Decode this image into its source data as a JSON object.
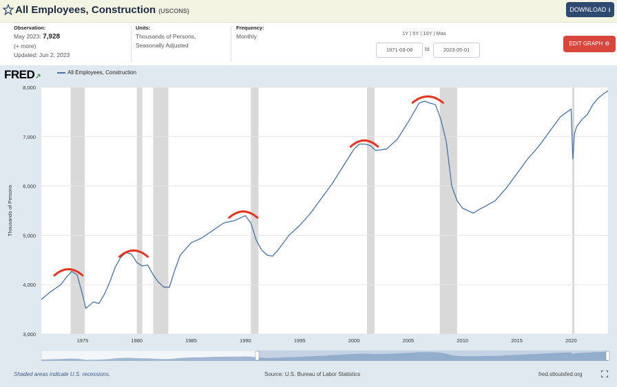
{
  "header": {
    "title": "All Employees, Construction",
    "series_id": "(USCONS)",
    "download_label": "DOWNLOAD"
  },
  "observation": {
    "label": "Observation:",
    "period": "May 2023:",
    "value": "7,928",
    "more": "(+ more)",
    "updated": "Updated: Jun 2, 2023"
  },
  "units": {
    "label": "Units:",
    "line1": "Thousands of Persons,",
    "line2": "Seasonally Adjusted"
  },
  "frequency": {
    "label": "Frequency:",
    "value": "Monthly"
  },
  "ranges": "1Y | 5Y | 10Y | Max",
  "dates": {
    "start": "1971-03-08",
    "to": "to",
    "end": "2023-05-01"
  },
  "edit_label": "EDIT GRAPH",
  "logo": "FRED",
  "legend": "All Employees, Construction",
  "footer": {
    "recession_note": "Shaded areas indicate U.S. recessions.",
    "source": "Source: U.S. Bureau of Labor Statistics",
    "site": "fred.stlouisfed.org"
  },
  "colors": {
    "line": "#4572a7",
    "recession": "#d9d9d9",
    "annotation": "#e8331c",
    "download": "#2e4a70",
    "edit": "#d9463b"
  },
  "chart_data": {
    "type": "line",
    "ylabel": "Thousands of Persons",
    "ylim": [
      3000,
      8000
    ],
    "xlim": [
      1971.2,
      2023.4
    ],
    "yticks": [
      3000,
      4000,
      5000,
      6000,
      7000,
      8000
    ],
    "ytick_labels": [
      "3,000",
      "4,000",
      "5,000",
      "6,000",
      "7,000",
      "8,000"
    ],
    "xticks": [
      1975,
      1980,
      1985,
      1990,
      1995,
      2000,
      2005,
      2010,
      2015,
      2020
    ],
    "xtick_labels": [
      "1975",
      "1980",
      "1985",
      "1990",
      "1995",
      "2000",
      "2005",
      "2010",
      "2015",
      "2020"
    ],
    "recessions": [
      [
        1973.9,
        1975.2
      ],
      [
        1980.0,
        1980.5
      ],
      [
        1981.5,
        1982.9
      ],
      [
        1990.5,
        1991.2
      ],
      [
        2001.2,
        2001.9
      ],
      [
        2007.9,
        2009.5
      ],
      [
        2020.1,
        2020.3
      ]
    ],
    "series": [
      {
        "name": "All Employees, Construction",
        "x": [
          1971.2,
          1972.0,
          1973.0,
          1973.5,
          1974.0,
          1974.5,
          1975.0,
          1975.3,
          1976.0,
          1976.5,
          1977.0,
          1977.5,
          1978.0,
          1978.5,
          1979.0,
          1979.5,
          1980.0,
          1980.5,
          1981.0,
          1981.5,
          1982.0,
          1982.5,
          1983.0,
          1983.5,
          1984.0,
          1985.0,
          1986.0,
          1987.0,
          1988.0,
          1989.0,
          1989.5,
          1990.0,
          1990.5,
          1991.0,
          1991.5,
          1992.0,
          1992.5,
          1993.0,
          1994.0,
          1995.0,
          1996.0,
          1997.0,
          1998.0,
          1999.0,
          2000.0,
          2000.5,
          2001.0,
          2001.5,
          2002.0,
          2003.0,
          2004.0,
          2005.0,
          2006.0,
          2006.5,
          2007.0,
          2007.5,
          2008.0,
          2008.5,
          2009.0,
          2009.5,
          2010.0,
          2010.5,
          2011.0,
          2011.5,
          2012.0,
          2013.0,
          2014.0,
          2015.0,
          2016.0,
          2017.0,
          2018.0,
          2019.0,
          2019.5,
          2020.0,
          2020.15,
          2020.3,
          2020.5,
          2021.0,
          2021.5,
          2022.0,
          2022.5,
          2023.0,
          2023.4
        ],
        "values": [
          3700,
          3850,
          4000,
          4150,
          4270,
          4200,
          3800,
          3520,
          3650,
          3620,
          3800,
          4050,
          4350,
          4550,
          4650,
          4620,
          4450,
          4380,
          4400,
          4200,
          4050,
          3950,
          3950,
          4300,
          4600,
          4850,
          4950,
          5100,
          5250,
          5300,
          5350,
          5400,
          5250,
          4900,
          4700,
          4600,
          4580,
          4700,
          5000,
          5200,
          5450,
          5750,
          6050,
          6400,
          6750,
          6850,
          6850,
          6820,
          6720,
          6750,
          6950,
          7300,
          7680,
          7720,
          7680,
          7650,
          7350,
          6900,
          6000,
          5700,
          5550,
          5500,
          5450,
          5520,
          5580,
          5700,
          5950,
          6250,
          6550,
          6800,
          7100,
          7400,
          7480,
          7560,
          6550,
          7050,
          7200,
          7350,
          7450,
          7650,
          7780,
          7870,
          7928
        ]
      }
    ],
    "annotations": [
      {
        "type": "arc",
        "x": [
          1972.4,
          1975.0
        ],
        "y": 4300
      },
      {
        "type": "arc",
        "x": [
          1978.4,
          1981.0
        ],
        "y": 4680
      },
      {
        "type": "arc",
        "x": [
          1988.5,
          1991.1
        ],
        "y": 5470
      },
      {
        "type": "arc",
        "x": [
          1999.7,
          2002.2
        ],
        "y": 6910
      },
      {
        "type": "arc",
        "x": [
          2005.4,
          2008.2
        ],
        "y": 7800
      }
    ]
  }
}
